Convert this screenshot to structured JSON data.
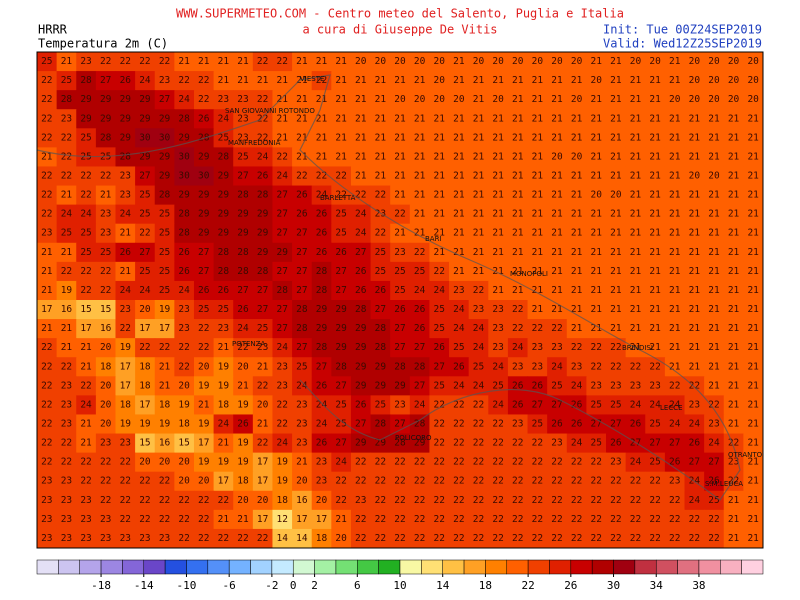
{
  "header": {
    "title": "WWW.SUPERMETEO.COM - Centro meteo del Salento, Puglia e Italia",
    "subtitle": "a cura di Giuseppe De Vitis",
    "model": "HRRR",
    "variable": "Temperatura 2m (C)",
    "init": "Init: Tue 00Z24SEP2019",
    "valid": "Valid: Wed12Z25SEP2019"
  },
  "places": [
    "VIESTE",
    "SAN GIOVANNI ROTONDO",
    "MANFREDONIA",
    "BARLETTA",
    "BARI",
    "MONOPOLI",
    "BRINDISI",
    "POTENZA",
    "LECCE",
    "POLICORO",
    "OTRANTO",
    "S.M.LEUCA"
  ],
  "grid": [
    [
      25,
      21,
      23,
      22,
      22,
      22,
      22,
      21,
      21,
      21,
      21,
      22,
      22,
      21,
      21,
      21,
      20,
      20,
      20,
      20,
      20,
      21,
      20,
      20,
      20,
      20,
      20,
      20,
      21,
      21,
      20,
      20,
      21,
      20,
      20,
      20,
      20
    ],
    [
      22,
      25,
      28,
      27,
      26,
      24,
      23,
      22,
      22,
      21,
      21,
      21,
      21,
      21,
      22,
      21,
      21,
      21,
      21,
      21,
      20,
      21,
      21,
      21,
      21,
      21,
      21,
      21,
      20,
      21,
      21,
      21,
      21,
      20,
      20,
      20,
      20
    ],
    [
      22,
      28,
      29,
      29,
      29,
      29,
      27,
      24,
      22,
      23,
      23,
      22,
      21,
      21,
      21,
      21,
      21,
      21,
      20,
      20,
      20,
      20,
      21,
      20,
      21,
      21,
      21,
      20,
      21,
      21,
      21,
      21,
      20,
      20,
      20,
      20,
      20
    ],
    [
      22,
      23,
      29,
      29,
      29,
      29,
      29,
      28,
      26,
      24,
      23,
      22,
      21,
      21,
      21,
      21,
      21,
      21,
      21,
      21,
      21,
      21,
      21,
      21,
      21,
      21,
      21,
      21,
      21,
      21,
      21,
      21,
      21,
      21,
      21,
      21,
      21
    ],
    [
      22,
      22,
      25,
      28,
      29,
      30,
      30,
      29,
      28,
      25,
      23,
      22,
      21,
      21,
      21,
      21,
      21,
      21,
      21,
      21,
      21,
      21,
      21,
      21,
      21,
      21,
      21,
      21,
      21,
      21,
      21,
      21,
      21,
      21,
      21,
      21,
      21
    ],
    [
      21,
      22,
      25,
      25,
      28,
      29,
      29,
      30,
      29,
      28,
      25,
      24,
      22,
      21,
      21,
      21,
      21,
      21,
      21,
      21,
      21,
      21,
      21,
      21,
      21,
      21,
      20,
      20,
      21,
      21,
      21,
      21,
      21,
      21,
      21,
      21,
      21
    ],
    [
      22,
      22,
      22,
      22,
      23,
      27,
      29,
      30,
      30,
      29,
      27,
      26,
      24,
      22,
      22,
      22,
      21,
      21,
      21,
      21,
      21,
      21,
      21,
      21,
      21,
      21,
      21,
      21,
      21,
      21,
      21,
      21,
      21,
      20,
      20,
      21,
      21
    ],
    [
      22,
      21,
      22,
      21,
      23,
      25,
      28,
      29,
      29,
      29,
      28,
      28,
      27,
      26,
      24,
      22,
      22,
      22,
      21,
      21,
      21,
      21,
      21,
      21,
      21,
      21,
      21,
      21,
      20,
      20,
      21,
      21,
      21,
      21,
      21,
      21,
      21
    ],
    [
      22,
      24,
      24,
      23,
      24,
      25,
      25,
      28,
      29,
      29,
      29,
      29,
      27,
      26,
      26,
      25,
      24,
      23,
      22,
      21,
      21,
      21,
      21,
      21,
      21,
      21,
      21,
      21,
      21,
      21,
      21,
      21,
      21,
      21,
      21,
      21,
      21
    ],
    [
      23,
      25,
      25,
      23,
      21,
      22,
      25,
      28,
      29,
      29,
      29,
      29,
      27,
      27,
      26,
      25,
      24,
      22,
      21,
      21,
      21,
      21,
      21,
      21,
      21,
      21,
      21,
      21,
      21,
      21,
      21,
      21,
      21,
      21,
      21,
      21,
      21
    ],
    [
      21,
      21,
      25,
      25,
      26,
      27,
      25,
      26,
      27,
      28,
      28,
      29,
      29,
      27,
      26,
      26,
      27,
      25,
      23,
      22,
      21,
      21,
      21,
      21,
      21,
      21,
      21,
      21,
      21,
      21,
      21,
      21,
      21,
      21,
      21,
      21,
      21
    ],
    [
      21,
      22,
      22,
      22,
      21,
      25,
      25,
      26,
      27,
      28,
      28,
      28,
      27,
      27,
      28,
      27,
      26,
      25,
      25,
      25,
      22,
      21,
      21,
      21,
      21,
      21,
      21,
      21,
      21,
      21,
      21,
      21,
      21,
      21,
      21,
      21,
      21
    ],
    [
      21,
      19,
      22,
      22,
      24,
      24,
      25,
      24,
      26,
      26,
      27,
      27,
      28,
      27,
      28,
      27,
      26,
      26,
      25,
      24,
      24,
      23,
      22,
      21,
      21,
      21,
      21,
      21,
      21,
      21,
      21,
      21,
      21,
      21,
      21,
      21,
      21
    ],
    [
      17,
      16,
      15,
      15,
      23,
      20,
      19,
      23,
      25,
      25,
      26,
      27,
      27,
      28,
      29,
      29,
      28,
      27,
      26,
      26,
      25,
      24,
      23,
      23,
      22,
      21,
      21,
      21,
      21,
      21,
      21,
      21,
      21,
      21,
      21,
      21,
      21
    ],
    [
      21,
      21,
      17,
      16,
      22,
      17,
      17,
      23,
      22,
      23,
      24,
      25,
      27,
      28,
      29,
      29,
      29,
      28,
      27,
      26,
      25,
      24,
      24,
      23,
      22,
      22,
      22,
      21,
      21,
      21,
      21,
      21,
      21,
      21,
      21,
      21,
      21
    ],
    [
      22,
      21,
      21,
      20,
      19,
      22,
      22,
      22,
      22,
      21,
      22,
      23,
      24,
      27,
      28,
      29,
      29,
      28,
      27,
      27,
      26,
      25,
      24,
      23,
      24,
      23,
      23,
      22,
      22,
      22,
      21,
      21,
      21,
      21,
      21,
      21,
      21
    ],
    [
      22,
      22,
      21,
      18,
      17,
      18,
      21,
      22,
      20,
      19,
      20,
      21,
      23,
      25,
      27,
      28,
      29,
      29,
      28,
      28,
      27,
      26,
      25,
      24,
      23,
      23,
      24,
      23,
      22,
      22,
      22,
      22,
      21,
      21,
      21,
      21,
      21
    ],
    [
      22,
      23,
      22,
      20,
      17,
      18,
      21,
      20,
      19,
      19,
      21,
      22,
      23,
      24,
      26,
      27,
      29,
      29,
      29,
      27,
      25,
      24,
      24,
      25,
      26,
      26,
      25,
      24,
      23,
      23,
      23,
      23,
      22,
      22,
      21,
      21,
      21
    ],
    [
      22,
      23,
      24,
      20,
      18,
      17,
      18,
      19,
      21,
      18,
      19,
      20,
      22,
      23,
      24,
      25,
      26,
      25,
      23,
      24,
      22,
      22,
      22,
      24,
      26,
      27,
      27,
      26,
      25,
      25,
      24,
      24,
      24,
      23,
      22,
      21,
      21
    ],
    [
      22,
      23,
      21,
      20,
      19,
      19,
      19,
      18,
      19,
      24,
      26,
      21,
      22,
      23,
      24,
      25,
      27,
      28,
      27,
      28,
      22,
      22,
      22,
      22,
      23,
      25,
      26,
      26,
      27,
      27,
      26,
      25,
      24,
      24,
      23,
      21,
      21
    ],
    [
      22,
      22,
      21,
      23,
      23,
      15,
      16,
      15,
      17,
      21,
      19,
      22,
      24,
      23,
      26,
      27,
      29,
      29,
      28,
      29,
      22,
      22,
      22,
      22,
      22,
      22,
      23,
      24,
      25,
      26,
      27,
      27,
      27,
      26,
      24,
      22,
      21
    ],
    [
      22,
      22,
      22,
      22,
      22,
      20,
      20,
      20,
      19,
      19,
      19,
      17,
      19,
      21,
      23,
      24,
      22,
      22,
      22,
      22,
      22,
      22,
      22,
      22,
      22,
      22,
      22,
      22,
      22,
      23,
      24,
      25,
      26,
      27,
      27,
      23,
      21
    ],
    [
      23,
      23,
      22,
      22,
      22,
      22,
      22,
      20,
      20,
      17,
      18,
      17,
      19,
      20,
      23,
      22,
      22,
      22,
      22,
      22,
      22,
      22,
      22,
      22,
      22,
      22,
      22,
      22,
      22,
      22,
      22,
      22,
      23,
      24,
      26,
      22,
      21
    ],
    [
      23,
      23,
      23,
      22,
      22,
      22,
      22,
      22,
      22,
      22,
      20,
      20,
      18,
      16,
      20,
      22,
      23,
      22,
      22,
      22,
      22,
      22,
      22,
      22,
      22,
      22,
      22,
      22,
      22,
      22,
      22,
      22,
      22,
      24,
      25,
      21,
      21
    ],
    [
      23,
      23,
      23,
      23,
      22,
      22,
      22,
      22,
      22,
      21,
      21,
      17,
      12,
      17,
      17,
      21,
      22,
      22,
      22,
      22,
      22,
      22,
      22,
      22,
      22,
      22,
      22,
      22,
      22,
      22,
      22,
      22,
      22,
      22,
      22,
      21,
      21
    ],
    [
      23,
      23,
      23,
      23,
      23,
      23,
      23,
      22,
      22,
      22,
      22,
      22,
      14,
      14,
      18,
      20,
      22,
      22,
      22,
      22,
      22,
      22,
      22,
      22,
      22,
      22,
      22,
      22,
      22,
      22,
      22,
      22,
      22,
      22,
      22,
      21,
      21
    ]
  ],
  "colorbar": {
    "range": [
      -24,
      44
    ],
    "ticks": [
      -18,
      -14,
      -10,
      -6,
      -2,
      0,
      2,
      6,
      10,
      14,
      18,
      22,
      26,
      30,
      34,
      38
    ],
    "colors": [
      "#e4e0f6",
      "#ccc4f0",
      "#b4a4ea",
      "#9c86e2",
      "#8466d8",
      "#6a46c8",
      "#2450e0",
      "#3470f0",
      "#5490f8",
      "#74b2ff",
      "#a2d2ff",
      "#c4eaff",
      "#d2f8d2",
      "#a4f0a4",
      "#74e074",
      "#44c844",
      "#22b022",
      "#f8f8a4",
      "#ffe074",
      "#ffc044",
      "#ffa024",
      "#ff8000",
      "#ff6000",
      "#f04000",
      "#e02000",
      "#c80000",
      "#b00000",
      "#a00010",
      "#c03040",
      "#d05060",
      "#e07080",
      "#f090a0",
      "#f8b0c0",
      "#ffd0e0"
    ]
  }
}
